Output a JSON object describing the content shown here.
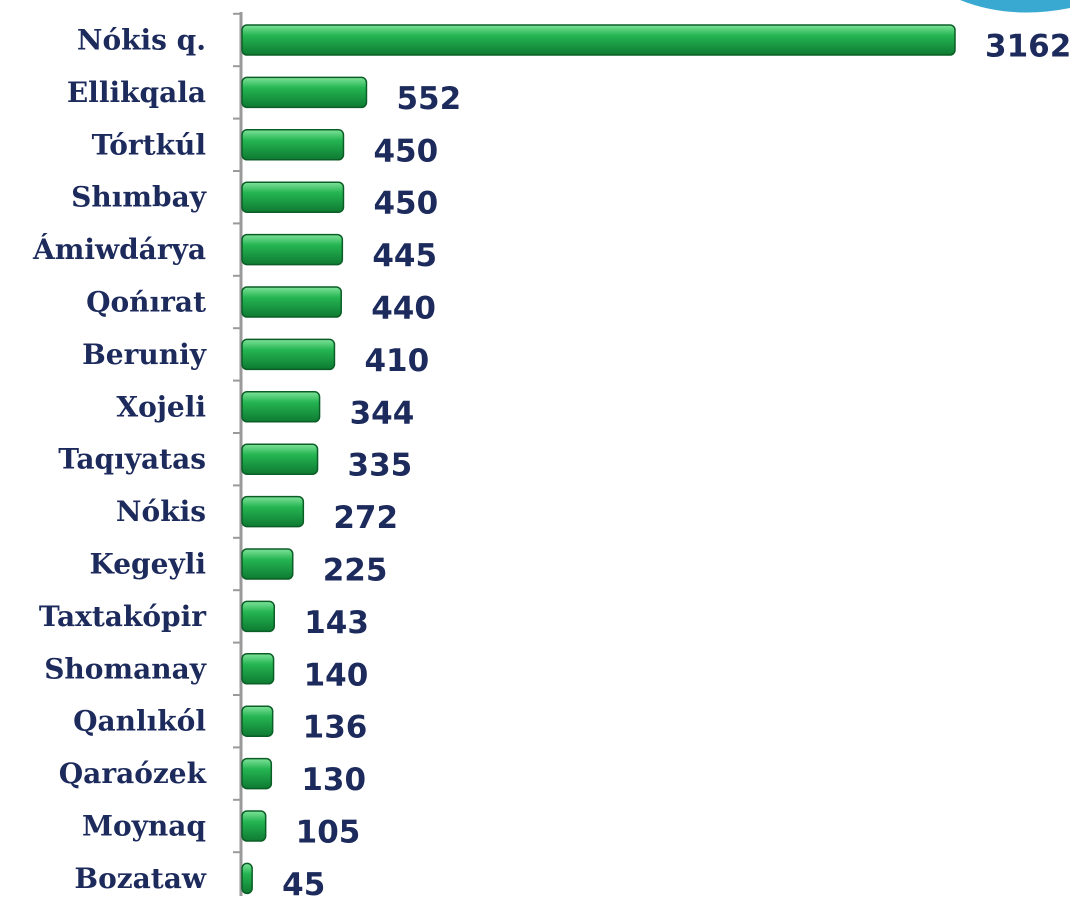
{
  "chart_data": {
    "type": "bar",
    "orientation": "horizontal",
    "color": "#1fae4b",
    "categories": [
      "Nókis q.",
      "Ellikqala",
      "Tórtkúl",
      "Shımbay",
      "Ámiwdárya",
      "Qońırat",
      "Beruniy",
      "Xojeli",
      "Taqıyatas",
      "Nókis",
      "Kegeyli",
      "Taxtakópir",
      "Shomanay",
      "Qanlıkól",
      "Qaraózek",
      "Moynaq",
      "Bozataw"
    ],
    "values": [
      3162,
      552,
      450,
      450,
      445,
      440,
      410,
      344,
      335,
      272,
      225,
      143,
      140,
      136,
      130,
      105,
      45
    ]
  }
}
